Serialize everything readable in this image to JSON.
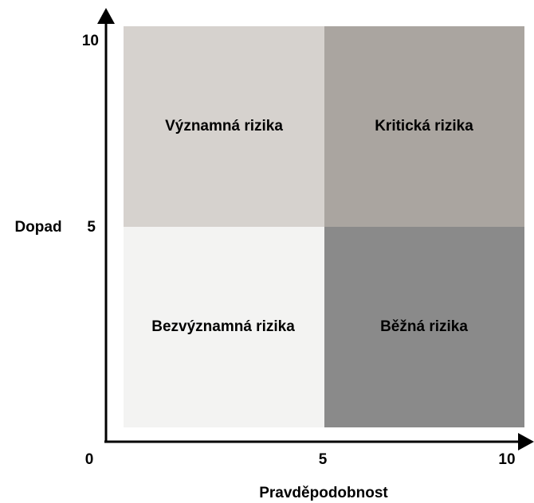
{
  "diagram": {
    "y_axis": {
      "label": "Dopad",
      "ticks": [
        "10",
        "5"
      ]
    },
    "x_axis": {
      "label": "Pravděpodobnost",
      "ticks": [
        "5",
        "10"
      ]
    },
    "origin": "0",
    "quadrants": [
      {
        "label": "Významná rizika"
      },
      {
        "label": "Kritická rizika"
      },
      {
        "label": "Bezvýznamná rizika"
      },
      {
        "label": "Běžná rizika"
      }
    ]
  }
}
